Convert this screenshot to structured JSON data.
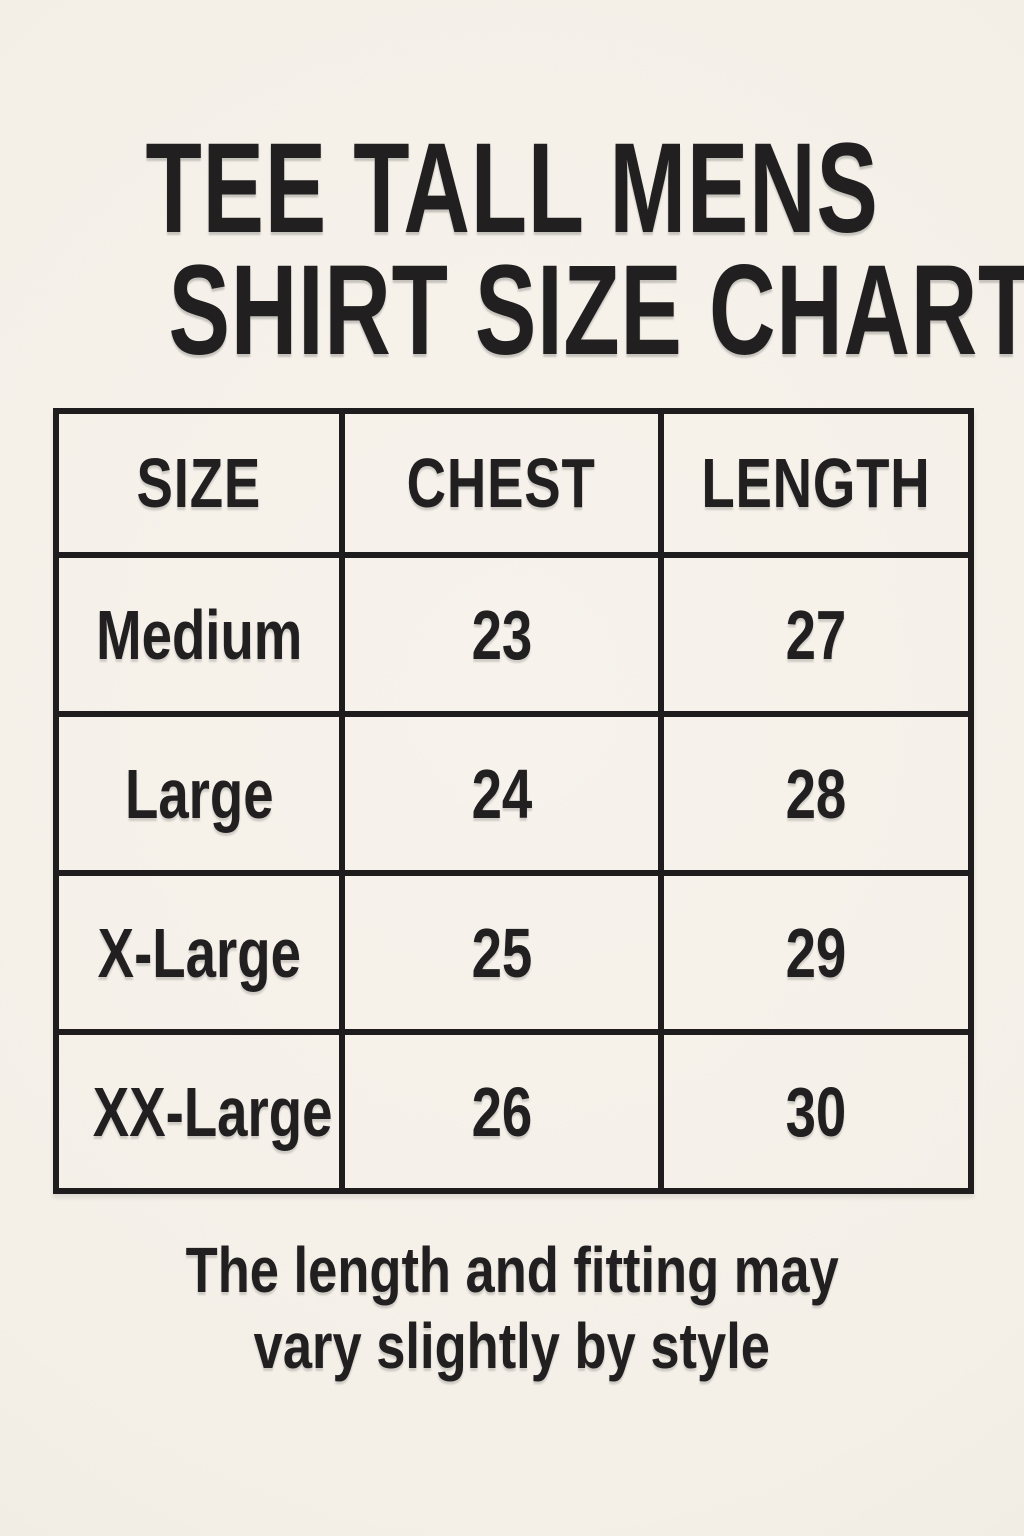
{
  "header": {
    "title_line1": "TEE TALL MENS",
    "title_line2": "SHIRT SIZE CHART"
  },
  "footer": {
    "line1": "The length and fitting may",
    "line2": "vary slightly by style"
  },
  "colors": {
    "background": "#f4f0e8",
    "ink": "#211f20",
    "table_border": "#1e1c1d"
  },
  "chart_data": {
    "type": "table",
    "title": "TEE TALL MENS SHIRT SIZE CHART",
    "columns": [
      "SIZE",
      "CHEST",
      "LENGTH"
    ],
    "rows": [
      {
        "size": "Medium",
        "chest": 23,
        "length": 27
      },
      {
        "size": "Large",
        "chest": 24,
        "length": 28
      },
      {
        "size": "X-Large",
        "chest": 25,
        "length": 29
      },
      {
        "size": "XX-Large",
        "chest": 26,
        "length": 30
      }
    ],
    "note": "The length and fitting may vary slightly by style"
  }
}
